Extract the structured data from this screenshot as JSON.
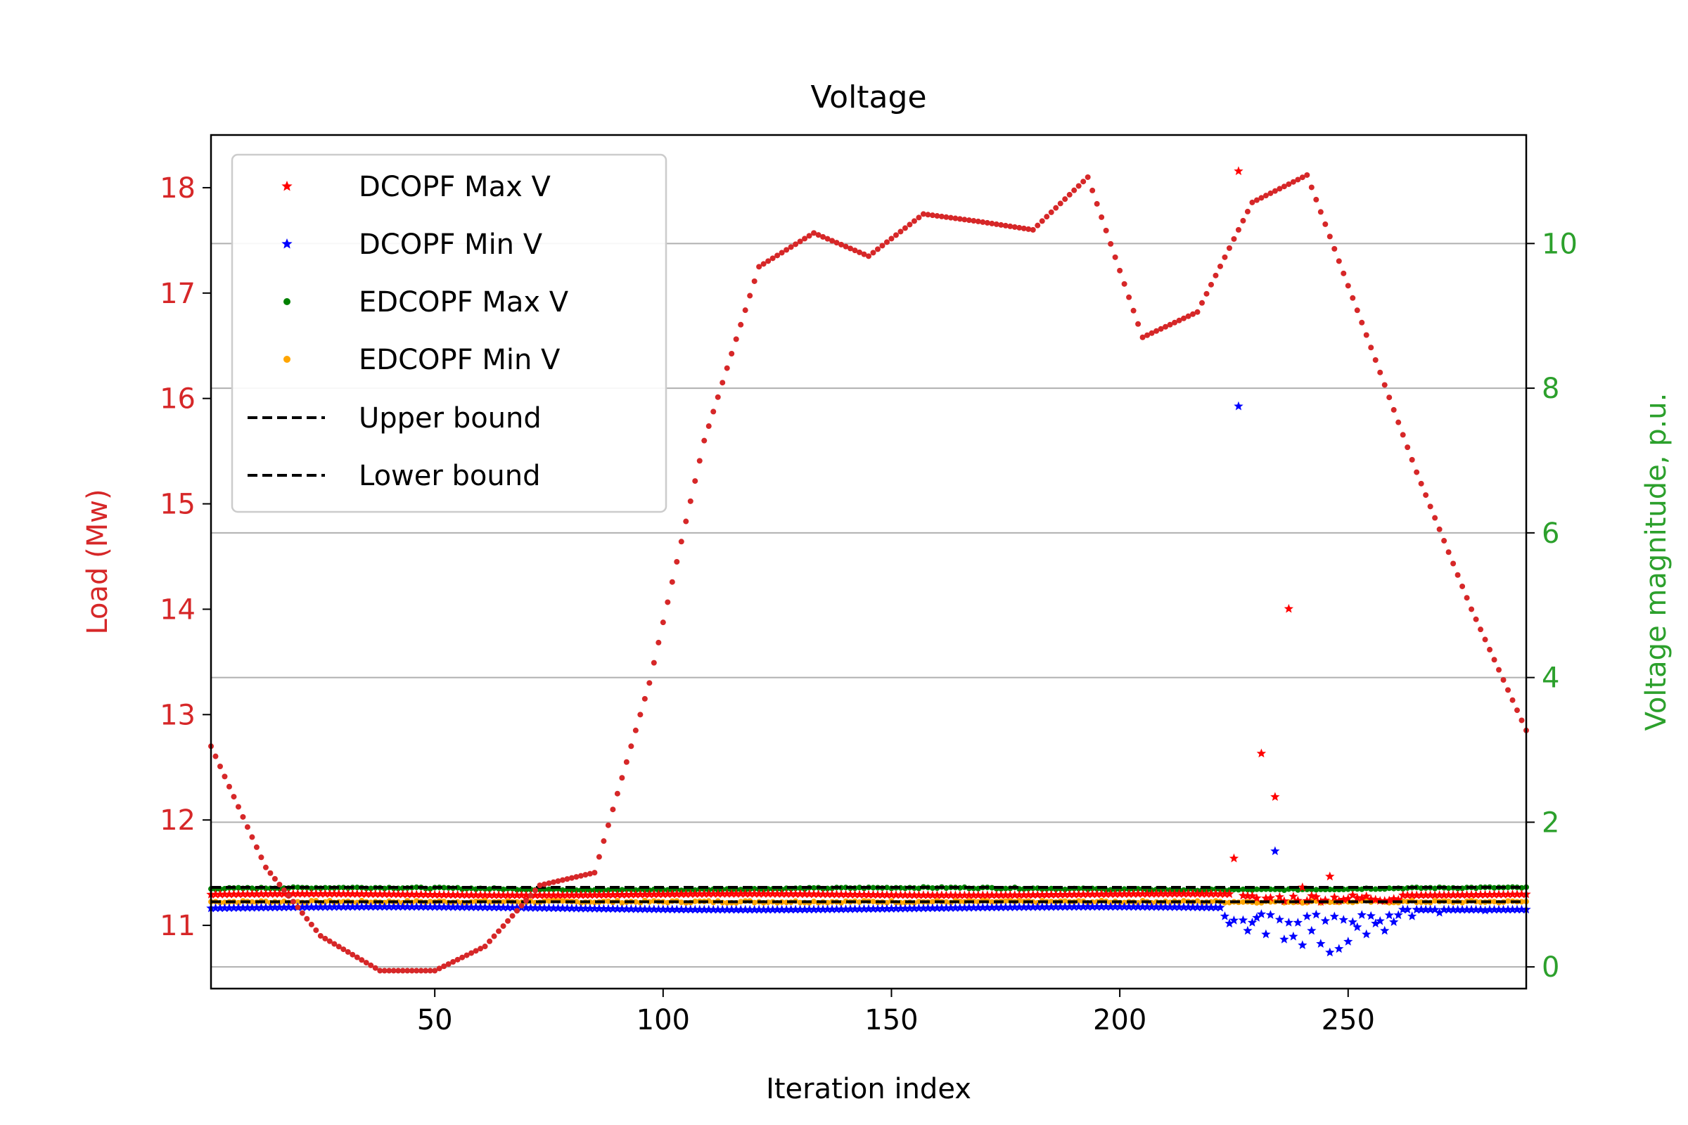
{
  "colors": {
    "load": "#d62728",
    "voltage_axis": "#2ca02c",
    "dcopf_max": "#ff0000",
    "dcopf_min": "#0000ff",
    "edcopf_max": "#008000",
    "edcopf_min": "#ffa500",
    "bounds": "#000000",
    "grid": "#b0b0b0"
  },
  "chart_data": {
    "type": "scatter",
    "title": "Voltage",
    "xlabel": "Iteration index",
    "ylabel_left": "Load (Mw)",
    "ylabel_right": "Voltage magnitude, p.u.",
    "xlim": [
      1,
      289
    ],
    "ylim_left": [
      10.4,
      18.5
    ],
    "ylim_right": [
      -0.3,
      11.5
    ],
    "xticks": [
      50,
      100,
      150,
      200,
      250
    ],
    "yticks_left": [
      11,
      12,
      13,
      14,
      15,
      16,
      17,
      18
    ],
    "yticks_right": [
      0,
      2,
      4,
      6,
      8,
      10
    ],
    "grid": "right-axis horizontal",
    "legend_position": "upper-left",
    "legend": [
      {
        "label": "DCOPF Max V",
        "marker": "star",
        "color": "#ff0000"
      },
      {
        "label": "DCOPF Min V",
        "marker": "star",
        "color": "#0000ff"
      },
      {
        "label": "EDCOPF Max V",
        "marker": "dot",
        "color": "#008000"
      },
      {
        "label": "EDCOPF Min V",
        "marker": "dot",
        "color": "#ffa500"
      },
      {
        "label": "Upper bound",
        "marker": "dash",
        "color": "#000000"
      },
      {
        "label": "Lower bound",
        "marker": "dash",
        "color": "#000000"
      }
    ],
    "load_series": {
      "name": "Load",
      "axis": "left",
      "marker": "dot",
      "interpolation": "linear",
      "keypoints": [
        [
          1,
          12.7
        ],
        [
          13,
          11.55
        ],
        [
          25,
          10.9
        ],
        [
          38,
          10.57
        ],
        [
          50,
          10.57
        ],
        [
          61,
          10.8
        ],
        [
          73,
          11.38
        ],
        [
          85,
          11.5
        ],
        [
          97,
          13.3
        ],
        [
          109,
          15.6
        ],
        [
          121,
          17.25
        ],
        [
          133,
          17.57
        ],
        [
          145,
          17.35
        ],
        [
          157,
          17.75
        ],
        [
          169,
          17.68
        ],
        [
          181,
          17.6
        ],
        [
          193,
          18.1
        ],
        [
          205,
          16.58
        ],
        [
          217,
          16.82
        ],
        [
          229,
          17.86
        ],
        [
          241,
          18.12
        ],
        [
          253,
          16.72
        ],
        [
          265,
          15.3
        ],
        [
          277,
          14.0
        ],
        [
          289,
          12.85
        ]
      ]
    },
    "voltage_series": [
      {
        "name": "DCOPF Max V",
        "axis": "right",
        "marker": "star",
        "baseline": 1.0,
        "outliers": [
          [
            225,
            1.5
          ],
          [
            226,
            11.0
          ],
          [
            230,
            0.95
          ],
          [
            231,
            2.95
          ],
          [
            234,
            2.35
          ],
          [
            237,
            4.95
          ],
          [
            240,
            1.1
          ],
          [
            246,
            1.25
          ]
        ]
      },
      {
        "name": "DCOPF Min V",
        "axis": "right",
        "marker": "star",
        "baseline": 0.81,
        "dips": [
          [
            223,
            0.7
          ],
          [
            224,
            0.6
          ],
          [
            226,
            7.75
          ],
          [
            228,
            0.5
          ],
          [
            230,
            0.68
          ],
          [
            232,
            0.45
          ],
          [
            234,
            1.6
          ],
          [
            236,
            0.38
          ],
          [
            238,
            0.42
          ],
          [
            240,
            0.3
          ],
          [
            242,
            0.5
          ],
          [
            244,
            0.32
          ],
          [
            246,
            0.2
          ],
          [
            248,
            0.25
          ],
          [
            250,
            0.35
          ],
          [
            252,
            0.55
          ],
          [
            254,
            0.45
          ],
          [
            256,
            0.6
          ],
          [
            258,
            0.5
          ],
          [
            260,
            0.62
          ],
          [
            264,
            0.7
          ],
          [
            270,
            0.75
          ],
          [
            280,
            0.78
          ]
        ]
      },
      {
        "name": "EDCOPF Max V",
        "axis": "right",
        "marker": "dot",
        "baseline": 1.08
      },
      {
        "name": "EDCOPF Min V",
        "axis": "right",
        "marker": "dot",
        "baseline": 0.9
      },
      {
        "name": "Upper bound",
        "axis": "right",
        "style": "dashed",
        "value": 1.1
      },
      {
        "name": "Lower bound",
        "axis": "right",
        "style": "dashed",
        "value": 0.9
      }
    ]
  }
}
